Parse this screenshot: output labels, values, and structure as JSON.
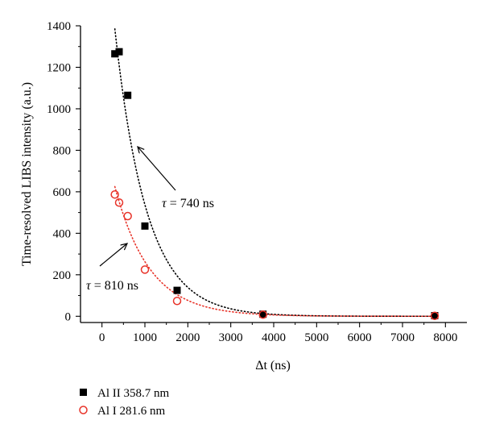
{
  "chart_data": {
    "type": "scatter",
    "ylabel": "Time-resolved LIBS intensity (a.u.)",
    "xlabel": "Δt (ns)",
    "xlim": [
      -500,
      8500
    ],
    "ylim": [
      -30,
      1400
    ],
    "xticks": [
      0,
      1000,
      2000,
      3000,
      4000,
      5000,
      6000,
      7000,
      8000
    ],
    "yticks": [
      0,
      200,
      400,
      600,
      800,
      1000,
      1200,
      1400
    ],
    "grid": false,
    "legend_position": "bottom-left",
    "series": [
      {
        "name": "Al II 358.7 nm",
        "marker": "filled-square",
        "color": "#000000",
        "x": [
          300,
          400,
          600,
          1000,
          1750,
          3750,
          7750
        ],
        "y": [
          1265,
          1275,
          1065,
          435,
          125,
          10,
          3
        ]
      },
      {
        "name": "Al I 281.6 nm",
        "marker": "open-circle",
        "color": "#e8342a",
        "x": [
          300,
          400,
          600,
          1000,
          1750,
          3750,
          7750
        ],
        "y": [
          587,
          548,
          483,
          225,
          74,
          8,
          2
        ]
      }
    ],
    "fits": [
      {
        "series": "Al II 358.7 nm",
        "color": "#000000",
        "style": "dotted",
        "function": "exponential-decay",
        "x_start": 300,
        "x_end": 7750,
        "y_at_300": 1385,
        "tau_ns": 740,
        "label_prefix": "τ = ",
        "label_value": "740",
        "label_unit": " ns"
      },
      {
        "series": "Al I 281.6 nm",
        "color": "#e8342a",
        "style": "dotted",
        "function": "exponential-decay",
        "x_start": 300,
        "x_end": 7750,
        "y_at_300": 625,
        "tau_ns": 810,
        "label_prefix": "τ = ",
        "label_value": "810",
        "label_unit": " ns"
      }
    ],
    "annotations": [
      {
        "text": "τ = 740 ns",
        "points_to_series": "Al II 358.7 nm"
      },
      {
        "text": "τ = 810 ns",
        "points_to_series": "Al I 281.6 nm"
      }
    ]
  }
}
